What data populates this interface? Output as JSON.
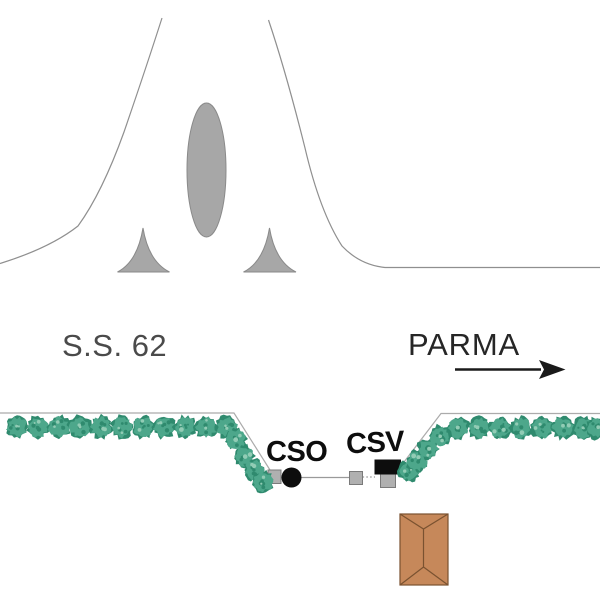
{
  "figure": {
    "road_label": "S.S. 62",
    "destination_label": "PARMA",
    "stations": {
      "cso_label": "CSO",
      "csv_label": "CSV"
    }
  },
  "icons": {
    "direction_arrow": "right-arrow",
    "bush": "shrub-icon",
    "building": "hip-roof-building"
  },
  "colors": {
    "background": "#ffffff",
    "curve_line": "#8f8f8f",
    "shape_fill": "#a7a7a7",
    "shape_outline": "#8a8a8a",
    "hedge_line": "#ababab",
    "bush_fill": "#4da78b",
    "bush_dark": "#2f8a6e",
    "bush_light": "#92ccb5",
    "instrument_gray": "#b0b0b0",
    "instrument_border": "#7a7a7a",
    "cable_gray": "#9a9a9a",
    "station_black": "#0d0d0d",
    "building_fill": "#c6885a",
    "building_outline": "#7a5230",
    "road_text": "#4a4a4a",
    "destination_text": "#262626",
    "arrow_black": "#1a1a1a"
  }
}
